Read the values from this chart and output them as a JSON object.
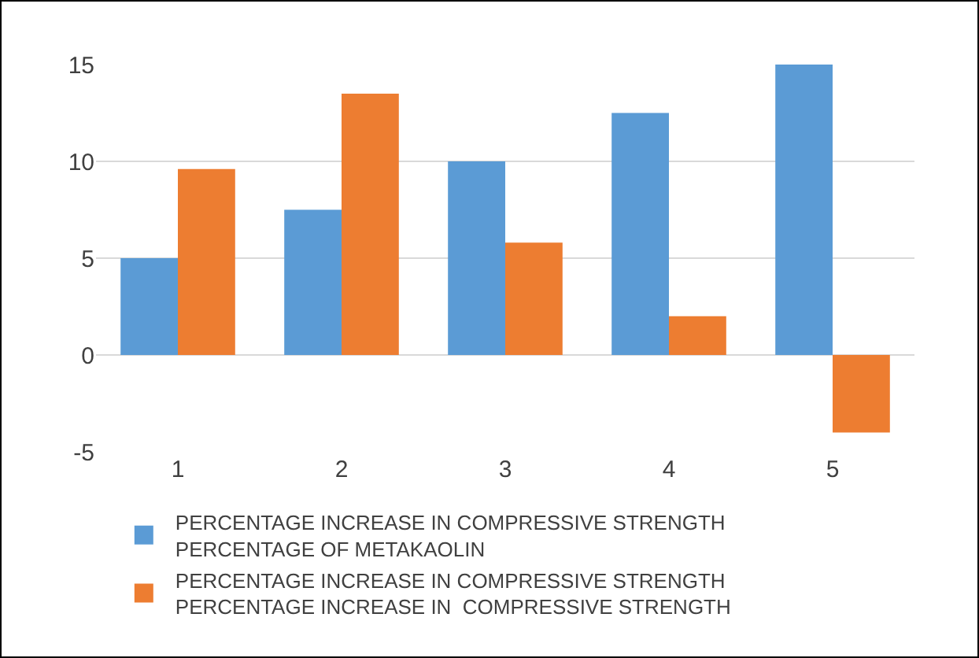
{
  "chart_data": {
    "type": "bar",
    "categories": [
      "1",
      "2",
      "3",
      "4",
      "5"
    ],
    "series": [
      {
        "name": "PERCENTAGE INCREASE IN COMPRESSIVE STRENGTH PERCENTAGE OF METAKAOLIN",
        "color": "#5b9bd5",
        "values": [
          5,
          7.5,
          10,
          12.5,
          15
        ]
      },
      {
        "name": "PERCENTAGE INCREASE IN COMPRESSIVE STRENGTH PERCENTAGE INCREASE IN  COMPRESSIVE STRENGTH",
        "color": "#ed7d31",
        "values": [
          9.6,
          13.5,
          5.8,
          2,
          -4
        ]
      }
    ],
    "ylim": [
      -5,
      15
    ],
    "yticks": [
      -5,
      0,
      5,
      10,
      15
    ],
    "grid": "y",
    "legend": "bottom"
  }
}
